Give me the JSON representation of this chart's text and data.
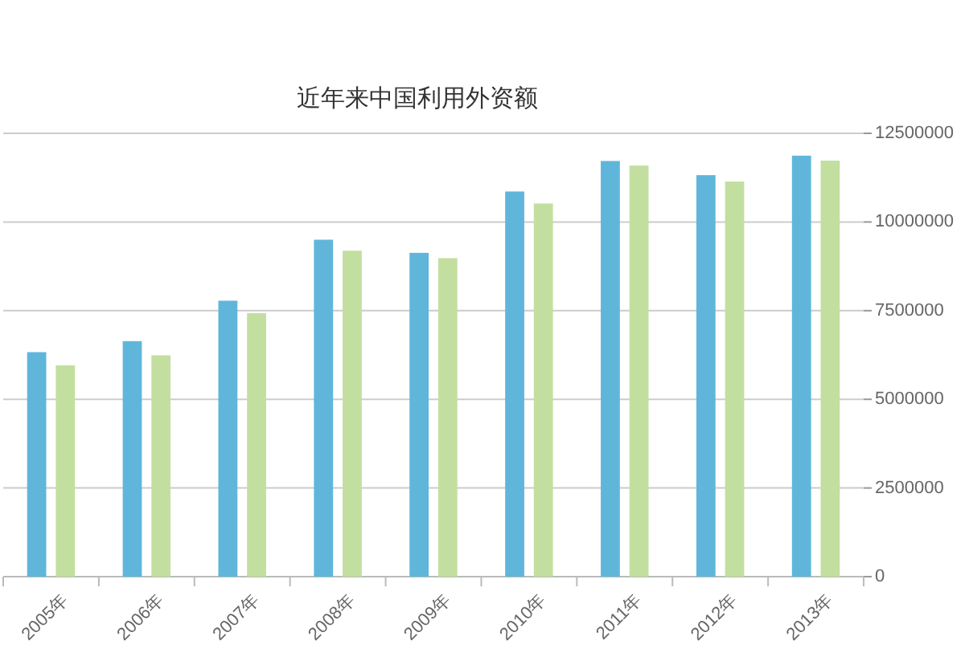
{
  "chart_data": {
    "type": "bar",
    "title": "近年来中国利用外资额",
    "categories": [
      "2005年",
      "2006年",
      "2007年",
      "2008年",
      "2009年",
      "2010年",
      "2011年",
      "2012年",
      "2013年"
    ],
    "series": [
      {
        "color": "#60b6da",
        "values": [
          6330000,
          6640000,
          7780000,
          9500000,
          9130000,
          10860000,
          11720000,
          11320000,
          11870000
        ]
      },
      {
        "color": "#c2df9f",
        "values": [
          5960000,
          6240000,
          7430000,
          9190000,
          8980000,
          10520000,
          11590000,
          11140000,
          11730000
        ]
      }
    ],
    "ylim": [
      0,
      12500000
    ],
    "yticks": [
      0,
      2500000,
      5000000,
      7500000,
      10000000,
      12500000
    ],
    "grid": "y"
  }
}
